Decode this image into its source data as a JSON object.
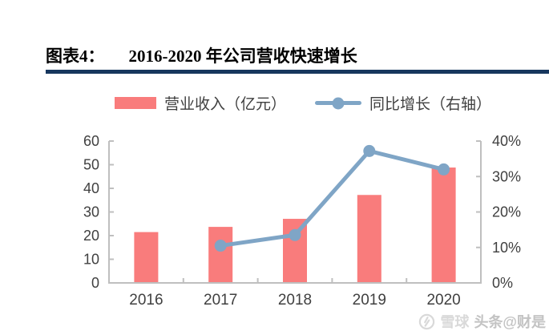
{
  "title": {
    "label": "图表4：",
    "text": "2016-2020 年公司营收快速增长"
  },
  "colors": {
    "rule": "#17375e",
    "axis": "#bfbfbf",
    "tick_text": "#404040"
  },
  "watermark": {
    "logo": "xueqiu-logo",
    "brand": "雪球",
    "suffix": "头条@财是"
  },
  "chart_data": {
    "type": "bar",
    "subtype": "bar-line-combo",
    "title": "图表4： 2016-2020 年公司营收快速增长",
    "categories": [
      "2016",
      "2017",
      "2018",
      "2019",
      "2020"
    ],
    "series": [
      {
        "name": "营业收入（亿元）",
        "type": "bar",
        "axis": "left",
        "color": "#f97c7c",
        "values": [
          21.5,
          23.7,
          27.1,
          37.2,
          48.8
        ]
      },
      {
        "name": "同比增长（右轴）",
        "type": "line",
        "axis": "right",
        "color": "#7fa5c6",
        "values": [
          null,
          10.5,
          13.5,
          37.2,
          32.0
        ]
      }
    ],
    "left_axis": {
      "min": 0,
      "max": 60,
      "step": 10,
      "ticks": [
        "0",
        "10",
        "20",
        "30",
        "40",
        "50",
        "60"
      ]
    },
    "right_axis": {
      "min": 0,
      "max": 40,
      "step": 10,
      "ticks": [
        "0%",
        "10%",
        "20%",
        "30%",
        "40%"
      ],
      "format": "percent"
    },
    "grid": false,
    "legend_position": "top"
  }
}
